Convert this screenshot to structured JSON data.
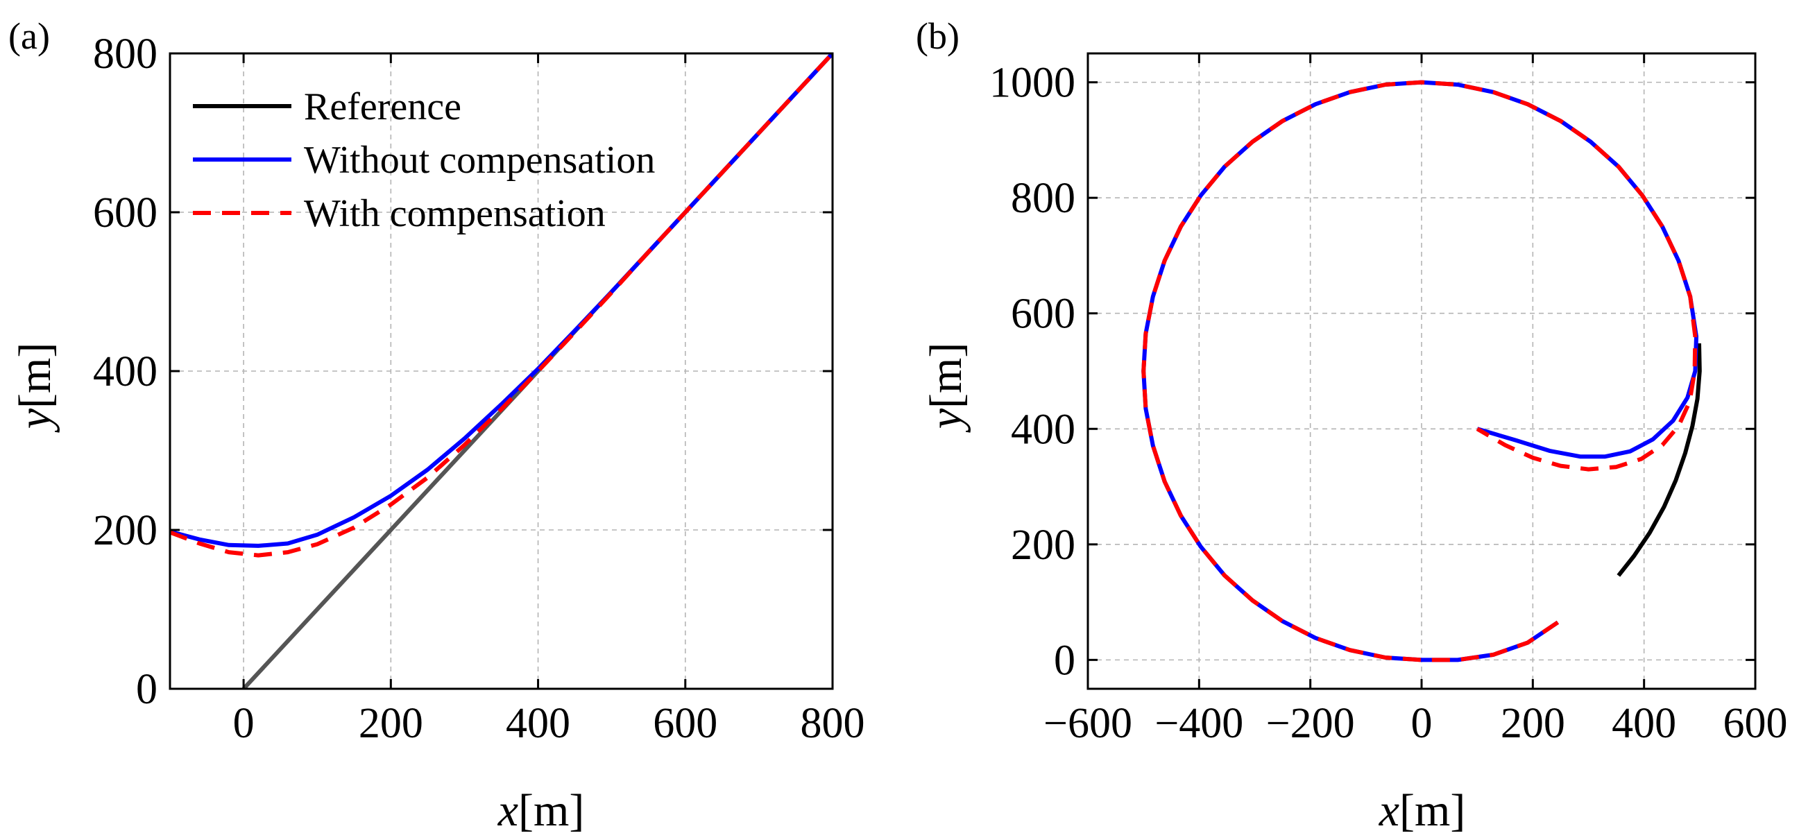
{
  "figure": {
    "panels": [
      "(a)",
      "(b)"
    ]
  },
  "chart_data": [
    {
      "type": "line",
      "panel": "(a)",
      "title": "",
      "xlabel": "x[m]",
      "ylabel": "y[m]",
      "xlim": [
        -100,
        800
      ],
      "ylim": [
        0,
        800
      ],
      "xticks": [
        0,
        200,
        400,
        600,
        800
      ],
      "yticks": [
        0,
        200,
        400,
        600,
        800
      ],
      "grid": true,
      "legend_position": "top-left",
      "legend": [
        "Reference",
        "Without compensation",
        "With compensation"
      ],
      "series": [
        {
          "name": "Reference",
          "color": "#555555",
          "style": "solid",
          "x": [
            0,
            800
          ],
          "y": [
            0,
            800
          ]
        },
        {
          "name": "Without compensation",
          "color": "#0000ff",
          "style": "solid",
          "x": [
            -100,
            -60,
            -20,
            20,
            60,
            100,
            150,
            200,
            250,
            300,
            350,
            400,
            450,
            500,
            550,
            600,
            650,
            700,
            750,
            800
          ],
          "y": [
            198,
            188,
            181,
            180,
            183,
            194,
            216,
            243,
            276,
            315,
            358,
            403,
            451,
            500,
            550,
            600,
            650,
            700,
            750,
            800
          ]
        },
        {
          "name": "With compensation",
          "color": "#ff0000",
          "style": "dashed",
          "x": [
            -100,
            -60,
            -20,
            20,
            60,
            100,
            150,
            200,
            250,
            300,
            350,
            400,
            450,
            500,
            550,
            600,
            650,
            700,
            750,
            800
          ],
          "y": [
            197,
            183,
            172,
            168,
            172,
            182,
            203,
            232,
            266,
            307,
            352,
            400,
            449,
            499,
            550,
            600,
            650,
            700,
            750,
            800
          ]
        }
      ]
    },
    {
      "type": "line",
      "panel": "(b)",
      "title": "",
      "xlabel": "x[m]",
      "ylabel": "y[m]",
      "xlim": [
        -600,
        600
      ],
      "ylim": [
        -50,
        1050
      ],
      "xticks": [
        -600,
        -400,
        -200,
        0,
        200,
        400,
        600
      ],
      "xtick_labels": [
        "−600",
        "−400",
        "−200",
        "0",
        "200",
        "400",
        "600"
      ],
      "yticks": [
        0,
        200,
        400,
        600,
        800,
        1000
      ],
      "grid": true,
      "series": [
        {
          "name": "Reference",
          "color": "#000000",
          "style": "solid",
          "x": [
            354,
            382,
            410,
            436,
            457,
            474,
            487,
            496,
            500,
            499
          ],
          "y": [
            146,
            180,
            220,
            265,
            311,
            358,
            405,
            452,
            500,
            548
          ]
        },
        {
          "name": "Without compensation",
          "color": "#0000ff",
          "style": "solid",
          "x": [
            245,
            191,
            129,
            65,
            0,
            -65,
            -129,
            -191,
            -250,
            -304,
            -354,
            -397,
            -433,
            -462,
            -483,
            -496,
            -500,
            -496,
            -483,
            -462,
            -433,
            -397,
            -354,
            -304,
            -250,
            -191,
            -129,
            -65,
            0,
            65,
            129,
            191,
            250,
            304,
            354,
            397,
            433,
            462,
            483,
            494,
            492,
            478,
            452,
            416,
            375,
            330,
            285,
            230,
            170,
            100
          ],
          "y": [
            65,
            30,
            9,
            0,
            0,
            4,
            17,
            38,
            67,
            103,
            146,
            196,
            250,
            309,
            371,
            435,
            500,
            565,
            629,
            691,
            750,
            804,
            854,
            897,
            933,
            962,
            983,
            996,
            1000,
            996,
            983,
            962,
            933,
            897,
            854,
            804,
            750,
            691,
            629,
            560,
            500,
            454,
            414,
            382,
            361,
            352,
            352,
            362,
            380,
            400
          ]
        },
        {
          "name": "With compensation",
          "color": "#ff0000",
          "style": "dashed",
          "x": [
            245,
            191,
            129,
            65,
            0,
            -65,
            -129,
            -191,
            -250,
            -304,
            -354,
            -397,
            -433,
            -462,
            -483,
            -496,
            -500,
            -496,
            -483,
            -462,
            -433,
            -397,
            -354,
            -304,
            -250,
            -191,
            -129,
            -65,
            0,
            65,
            129,
            191,
            250,
            304,
            354,
            397,
            433,
            462,
            483,
            492,
            491,
            482,
            462,
            433,
            395,
            350,
            300,
            250,
            200,
            150,
            100
          ],
          "y": [
            65,
            30,
            9,
            0,
            0,
            4,
            17,
            38,
            67,
            103,
            146,
            196,
            250,
            309,
            371,
            435,
            500,
            565,
            629,
            691,
            750,
            804,
            854,
            897,
            933,
            962,
            983,
            996,
            1000,
            996,
            983,
            962,
            933,
            897,
            854,
            804,
            750,
            691,
            629,
            560,
            500,
            447,
            405,
            372,
            348,
            334,
            330,
            336,
            350,
            372,
            400
          ]
        }
      ]
    }
  ]
}
